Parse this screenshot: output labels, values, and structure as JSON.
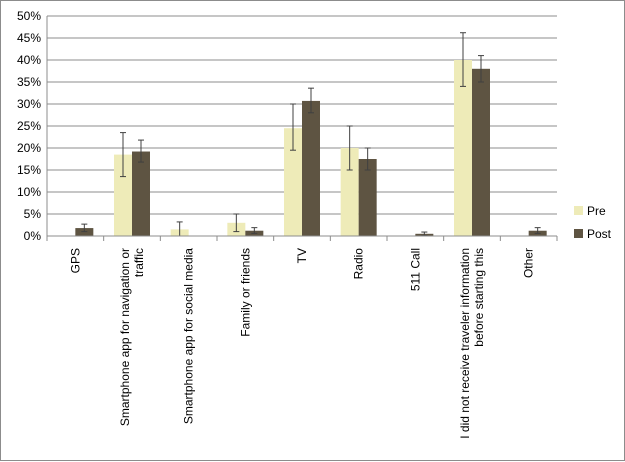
{
  "chart_data": {
    "type": "bar",
    "categories": [
      [
        "GPS"
      ],
      [
        "Smartphone app for navigation or",
        "traffic"
      ],
      [
        "Smartphone app for social media"
      ],
      [
        "Family or friends"
      ],
      [
        "TV"
      ],
      [
        "Radio"
      ],
      [
        "511 Call"
      ],
      [
        "I did not receive traveler information",
        "before starting this"
      ],
      [
        "Other"
      ]
    ],
    "series": [
      {
        "name": "Pre",
        "color": "#eeebb8",
        "values": [
          0,
          18.5,
          1.5,
          3,
          24.5,
          20,
          0,
          40,
          0
        ],
        "err_low": [
          0,
          13.5,
          0,
          1,
          19.5,
          15,
          0,
          34,
          0
        ],
        "err_high": [
          0,
          23.5,
          3.2,
          5,
          30,
          25,
          0,
          46.2,
          0
        ]
      },
      {
        "name": "Post",
        "color": "#5e5442",
        "values": [
          1.8,
          19.2,
          0,
          1.2,
          30.7,
          17.5,
          0.5,
          38,
          1.2
        ],
        "err_low": [
          1,
          16.8,
          0,
          0.6,
          28,
          15,
          0.1,
          35,
          0.6
        ],
        "err_high": [
          2.7,
          21.8,
          0,
          1.9,
          33.6,
          20,
          0.9,
          41,
          1.9
        ]
      }
    ],
    "ylim": [
      0,
      50
    ],
    "yticks": [
      "0%",
      "5%",
      "10%",
      "15%",
      "20%",
      "25%",
      "30%",
      "35%",
      "40%",
      "45%",
      "50%"
    ],
    "ystep": 5,
    "grid": true,
    "legend": "right"
  }
}
